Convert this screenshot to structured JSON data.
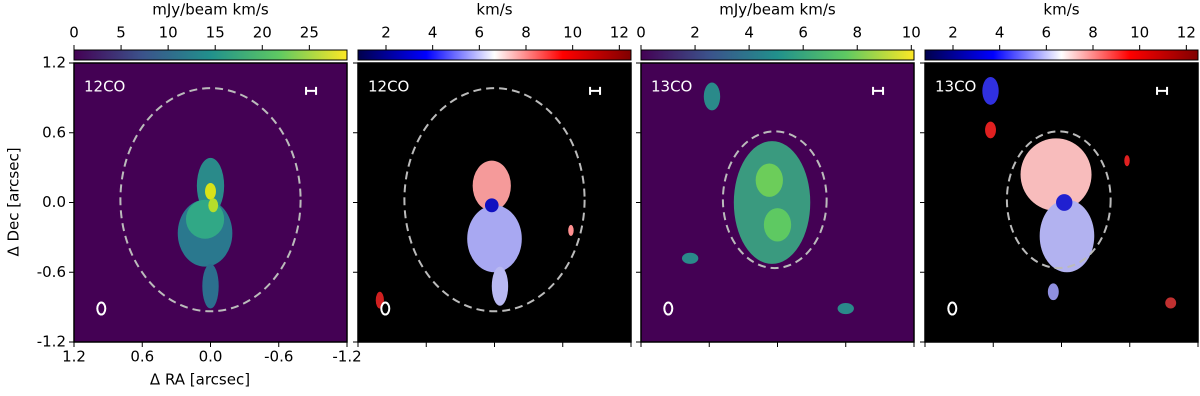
{
  "figure": {
    "x_label": "Δ RA [arcsec]",
    "y_label": "Δ Dec [arcsec]",
    "xlim": [
      1.2,
      -1.2
    ],
    "xticks": [
      1.2,
      0.6,
      {
        "value": 0,
        "label": "0.0"
      },
      -0.6,
      -1.2
    ],
    "ylim": [
      -1.2,
      1.2
    ],
    "yticks": [
      -1.2,
      -0.6,
      {
        "value": 0,
        "label": "0.0"
      },
      0.6,
      1.2
    ],
    "panels": [
      {
        "label": "12CO",
        "colorbar": {
          "label": "mJy/beam km/s",
          "lim": [
            0,
            29
          ],
          "ticks": [
            0,
            5,
            10,
            15,
            20,
            25
          ],
          "colors": [
            "#440154",
            "#3b528b",
            "#21918c",
            "#5ec962",
            "#fde725"
          ]
        }
      },
      {
        "label": "12CO",
        "colorbar": {
          "label": "km/s",
          "lim": [
            0.8,
            12.5
          ],
          "ticks": [
            2,
            4,
            6,
            8,
            10,
            12
          ],
          "colors": [
            "#00004c",
            "#0000ff",
            "#ffffff",
            "#ff0000",
            "#800000"
          ]
        }
      },
      {
        "label": "13CO",
        "colorbar": {
          "label": "mJy/beam km/s",
          "lim": [
            0,
            10.1
          ],
          "ticks": [
            0,
            2,
            4,
            6,
            8,
            10
          ],
          "colors": [
            "#440154",
            "#3b528b",
            "#21918c",
            "#5ec962",
            "#fde725"
          ]
        }
      },
      {
        "label": "13CO",
        "colorbar": {
          "label": "km/s",
          "lim": [
            0.8,
            12.5
          ],
          "ticks": [
            2,
            4,
            6,
            8,
            10,
            12
          ],
          "colors": [
            "#00004c",
            "#0000ff",
            "#ffffff",
            "#ff0000",
            "#800000"
          ]
        }
      }
    ]
  }
}
